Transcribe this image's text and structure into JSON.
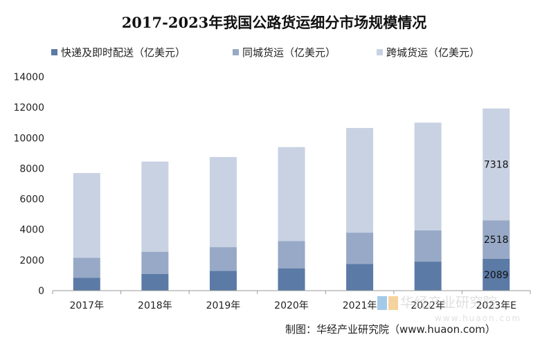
{
  "chart_data": {
    "type": "bar",
    "stacked": true,
    "title": "2017-2023年我国公路货运细分市场规模情况",
    "categories": [
      "2017年",
      "2018年",
      "2019年",
      "2020年",
      "2021年",
      "2022年",
      "2023年E"
    ],
    "series": [
      {
        "name": "快递及即时配送（亿美元）",
        "color": "#5b7aa6",
        "values": [
          850,
          1100,
          1300,
          1450,
          1750,
          1900,
          2089
        ]
      },
      {
        "name": "同城货运（亿美元）",
        "color": "#97a9c6",
        "values": [
          1300,
          1450,
          1550,
          1800,
          2050,
          2050,
          2518
        ]
      },
      {
        "name": "跨城货运（亿美元）",
        "color": "#c8d2e3",
        "values": [
          5550,
          5900,
          5900,
          6150,
          6850,
          7050,
          7318
        ]
      }
    ],
    "data_labels": {
      "category": "2023年E",
      "values": [
        "2089",
        "2518",
        "7318"
      ]
    },
    "ylim": [
      0,
      14000
    ],
    "yticks": [
      0,
      2000,
      4000,
      6000,
      8000,
      10000,
      12000,
      14000
    ],
    "legend_position": "top",
    "grid": false
  },
  "footer": {
    "source": "制图：华经产业研究院（www.huaon.com）"
  },
  "watermark": {
    "brand": "华经产业研究院",
    "url": "www.huaon.com"
  }
}
